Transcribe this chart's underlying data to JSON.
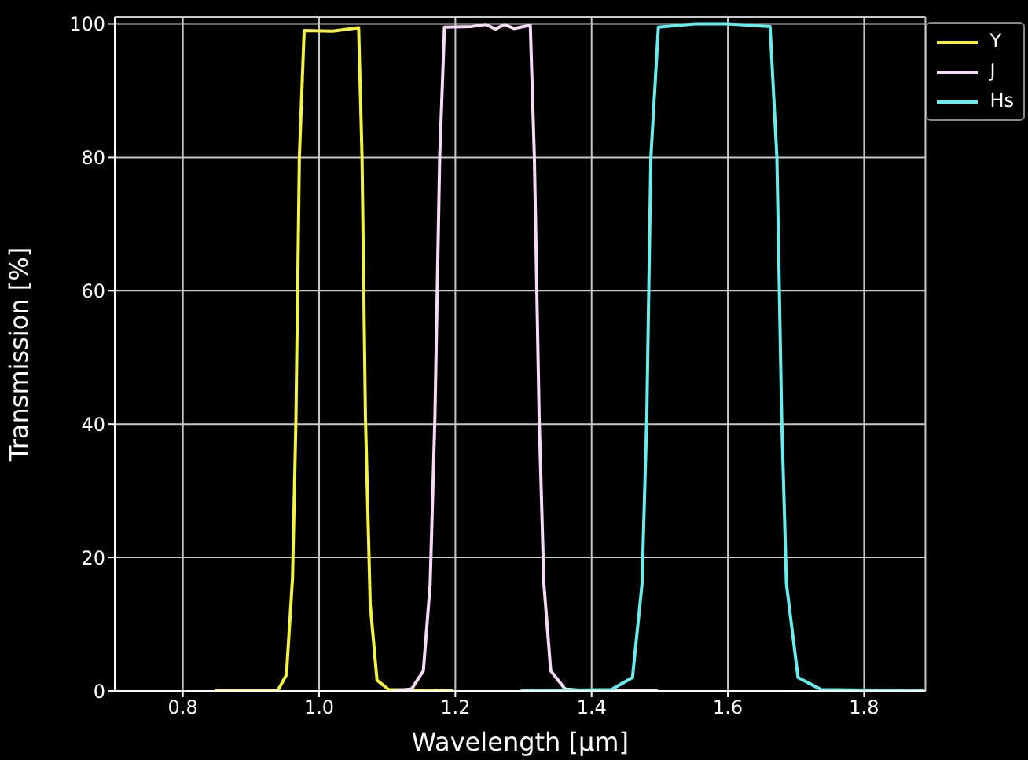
{
  "chart_data": {
    "type": "line",
    "xlabel": "Wavelength [µm]",
    "ylabel": "Transmission [%]",
    "xlim": [
      0.7,
      1.89
    ],
    "ylim": [
      0,
      101
    ],
    "xticks": [
      0.8,
      {
        "value": 1,
        "label": "1.0"
      },
      1.2,
      1.4,
      1.6,
      1.8
    ],
    "yticks": [
      0,
      20,
      40,
      60,
      80,
      100
    ],
    "grid": true,
    "legend": "top right",
    "marker": "none",
    "line_style": "solid",
    "series": [
      {
        "name": "Y",
        "color": "#f4f43a",
        "x": [
          0.847,
          0.939,
          0.952,
          0.961,
          0.966,
          0.971,
          0.978,
          1.02,
          1.058,
          1.063,
          1.068,
          1.075,
          1.085,
          1.102,
          1.197
        ],
        "values": [
          0,
          0,
          2.4,
          17,
          41,
          80,
          99,
          98.9,
          99.4,
          80,
          41,
          13,
          1.6,
          0.2,
          0
        ]
      },
      {
        "name": "J",
        "color": "#f6daf6",
        "x": [
          1.109,
          1.136,
          1.153,
          1.163,
          1.17,
          1.177,
          1.184,
          1.224,
          1.245,
          1.259,
          1.272,
          1.286,
          1.31,
          1.316,
          1.323,
          1.33,
          1.34,
          1.361,
          1.395,
          1.497
        ],
        "values": [
          0,
          0.3,
          3,
          16,
          41,
          80,
          99.5,
          99.6,
          99.9,
          99.2,
          99.9,
          99.3,
          99.8,
          80,
          41,
          16,
          3,
          0.3,
          0,
          0
        ]
      },
      {
        "name": "Hs",
        "color": "#66eded",
        "x": [
          1.296,
          1.429,
          1.46,
          1.474,
          1.481,
          1.487,
          1.498,
          1.552,
          1.6,
          1.662,
          1.672,
          1.679,
          1.686,
          1.703,
          1.737,
          1.888
        ],
        "values": [
          0,
          0.2,
          2,
          16,
          41,
          80,
          99.5,
          100,
          100,
          99.6,
          80,
          41,
          16,
          2,
          0.2,
          0
        ]
      }
    ]
  }
}
